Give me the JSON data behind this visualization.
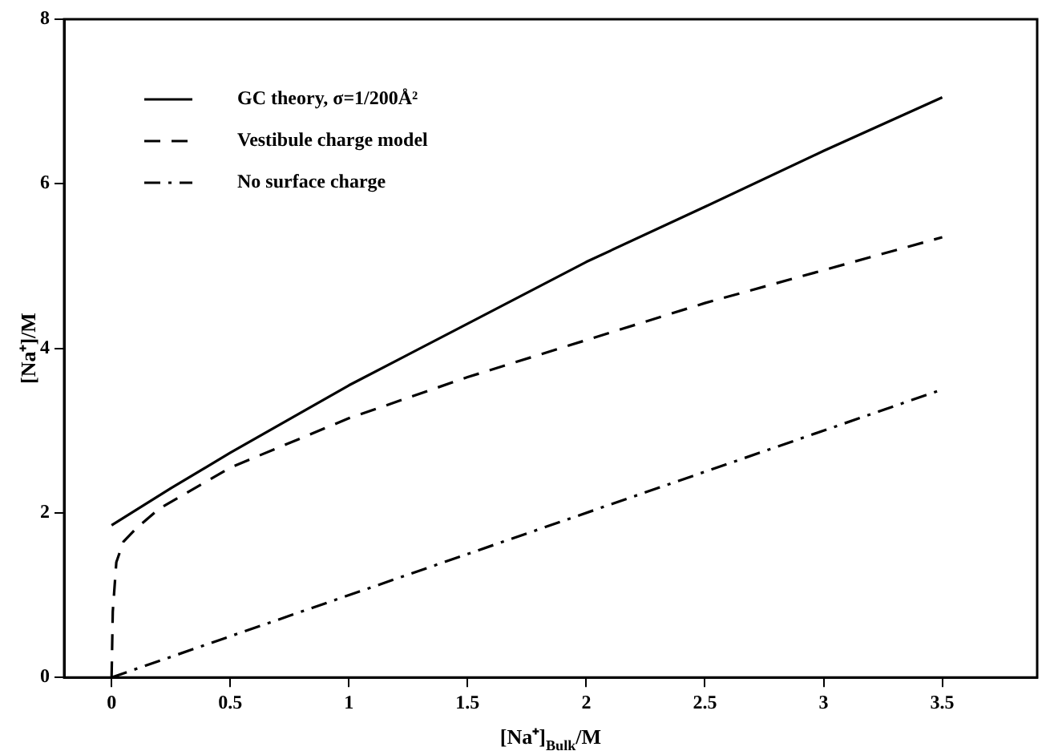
{
  "chart_data": {
    "type": "line",
    "xlabel": "[Na⁺]$_{Bulk}$/M",
    "ylabel": "[Na⁺]/M",
    "xlim": [
      -0.2,
      3.9
    ],
    "xticks": [
      0,
      0.5,
      1,
      1.5,
      2,
      2.5,
      3,
      3.5
    ],
    "ylim": [
      0,
      8
    ],
    "yticks": [
      0,
      2,
      4,
      6,
      8
    ],
    "grid": false,
    "legend": "top left",
    "marker": "none",
    "series": [
      {
        "name": "GC theory, σ=1/200Å²",
        "color": "#000000",
        "line_style": "solid",
        "x": [
          0,
          0.25,
          0.5,
          1,
          1.5,
          2,
          2.5,
          3,
          3.5
        ],
        "values": [
          1.85,
          2.3,
          2.73,
          3.55,
          4.3,
          5.05,
          5.72,
          6.4,
          7.05
        ]
      },
      {
        "name": "Vestibule charge model",
        "color": "#000000",
        "line_style": "dashed",
        "x": [
          0,
          0.005,
          0.02,
          0.05,
          0.1,
          0.2,
          0.5,
          1,
          1.5,
          2,
          2.5,
          3,
          3.5
        ],
        "values": [
          0,
          0.8,
          1.4,
          1.65,
          1.8,
          2.05,
          2.55,
          3.15,
          3.65,
          4.1,
          4.55,
          4.95,
          5.35
        ]
      },
      {
        "name": "No surface charge",
        "color": "#000000",
        "line_style": "dashdot",
        "x": [
          0,
          3.5
        ],
        "values": [
          0,
          3.5
        ]
      }
    ]
  }
}
